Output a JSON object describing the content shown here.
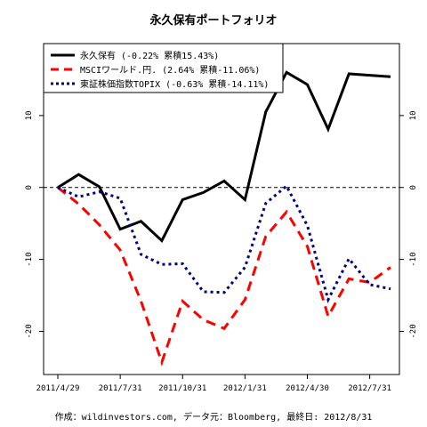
{
  "chart_data": {
    "type": "line",
    "title": "永久保有ポートフォリオ",
    "xlabel": "",
    "ylabel": "",
    "ylim": [
      -26,
      20
    ],
    "y_ticks": [
      -20,
      -10,
      0,
      10
    ],
    "y_tick_labels": [
      "-20",
      "-10",
      "0",
      "10"
    ],
    "x_tick_labels": [
      "2011/4/29",
      "2011/7/31",
      "2011/10/31",
      "2012/1/31",
      "2012/4/30",
      "2012/7/31"
    ],
    "x": [
      "2011/4",
      "2011/5",
      "2011/6",
      "2011/7",
      "2011/8",
      "2011/9",
      "2011/10",
      "2011/11",
      "2011/12",
      "2012/1",
      "2012/2",
      "2012/3",
      "2012/4",
      "2012/5",
      "2012/6",
      "2012/7",
      "2012/8"
    ],
    "reference_line": 0,
    "legend_position": "top-left",
    "series": [
      {
        "name": "永久保有 (-0.22% 累積15.43%)",
        "color": "#000000",
        "style": "solid",
        "values": [
          0.0,
          1.8,
          0.1,
          -5.8,
          -4.7,
          -7.4,
          -1.7,
          -0.7,
          0.9,
          -1.7,
          10.5,
          16.0,
          14.3,
          8.1,
          15.8,
          15.6,
          15.4
        ]
      },
      {
        "name": "MSCIワールド.円. (2.64% 累積-11.06%)",
        "color": "#ff0000",
        "style": "dashed",
        "values": [
          0.0,
          -2.3,
          -5.2,
          -8.7,
          -15.8,
          -24.3,
          -15.8,
          -18.4,
          -19.6,
          -15.6,
          -6.8,
          -3.4,
          -8.2,
          -17.9,
          -12.7,
          -13.2,
          -11.1
        ]
      },
      {
        "name": "東証株価指数TOPIX (-0.63% 累積-14.11%)",
        "color": "#000080",
        "style": "dotted",
        "values": [
          0.0,
          -1.3,
          -0.6,
          -1.5,
          -9.3,
          -10.7,
          -10.6,
          -14.5,
          -14.6,
          -11.1,
          -2.2,
          0.2,
          -5.3,
          -15.6,
          -9.9,
          -13.5,
          -14.1
        ]
      }
    ]
  },
  "caption": "作成：wildinvestors.com, データ元：Bloomberg, 最終日: 2012/8/31"
}
